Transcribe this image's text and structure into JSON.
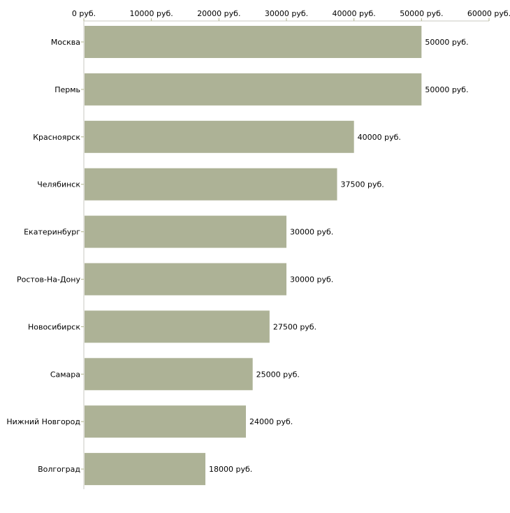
{
  "chart_data": {
    "type": "bar",
    "orientation": "horizontal",
    "categories": [
      "Москва",
      "Пермь",
      "Красноярск",
      "Челябинск",
      "Екатеринбург",
      "Ростов-На-Дону",
      "Новосибирск",
      "Самара",
      "Нижний Новгород",
      "Волгоград"
    ],
    "values": [
      50000,
      50000,
      40000,
      37500,
      30000,
      30000,
      27500,
      25000,
      24000,
      18000
    ],
    "data_labels": [
      "50000 руб.",
      "50000 руб.",
      "40000 руб.",
      "37500 руб.",
      "30000 руб.",
      "30000 руб.",
      "27500 руб.",
      "25000 руб.",
      "24000 руб.",
      "18000 руб."
    ],
    "x_ticks": [
      0,
      10000,
      20000,
      30000,
      40000,
      50000,
      60000
    ],
    "x_tick_labels": [
      "0 руб.",
      "10000 руб.",
      "20000 руб.",
      "30000 руб.",
      "40000 руб.",
      "50000 руб.",
      "60000 руб."
    ],
    "xlim": [
      0,
      60000
    ],
    "x_axis_position": "top",
    "title": "",
    "xlabel": "",
    "ylabel": "",
    "grid": false,
    "colors": {
      "bar": "#adb296",
      "axis": "#c8c8c0",
      "tick": "#b0b48c"
    }
  }
}
